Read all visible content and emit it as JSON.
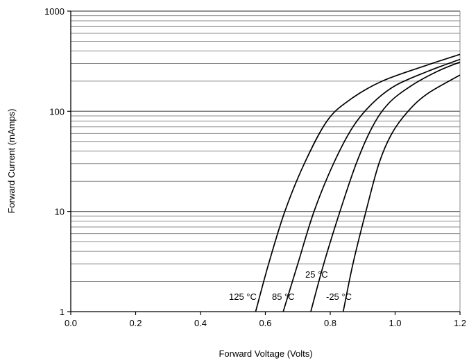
{
  "chart_data": {
    "type": "line",
    "xlabel": "Forward Voltage (Volts)",
    "ylabel": "Forward Current (mAmps)",
    "xlim": [
      0.0,
      1.2
    ],
    "ylim": [
      1,
      1000
    ],
    "y_scale": "log",
    "grid": "horizontal",
    "x_ticks": [
      "0.0",
      "0.2",
      "0.4",
      "0.6",
      "0.8",
      "1.0",
      "1.2"
    ],
    "y_ticks": [
      "1",
      "10",
      "100",
      "1000"
    ],
    "series": [
      {
        "name": "125 °C",
        "x": [
          0.57,
          0.61,
          0.66,
          0.72,
          0.79,
          0.86,
          0.96,
          1.1,
          1.2
        ],
        "y": [
          1,
          3,
          10,
          30,
          80,
          130,
          200,
          290,
          370
        ]
      },
      {
        "name": "85 °C",
        "x": [
          0.655,
          0.7,
          0.75,
          0.81,
          0.87,
          0.93,
          1.0,
          1.1,
          1.2
        ],
        "y": [
          1,
          3,
          10,
          30,
          70,
          120,
          180,
          250,
          330
        ]
      },
      {
        "name": "25 °C",
        "x": [
          0.74,
          0.78,
          0.83,
          0.88,
          0.93,
          0.98,
          1.05,
          1.13,
          1.2
        ],
        "y": [
          1,
          3,
          10,
          30,
          70,
          120,
          180,
          250,
          310
        ]
      },
      {
        "name": "-25 °C",
        "x": [
          0.84,
          0.87,
          0.91,
          0.95,
          0.99,
          1.04,
          1.1,
          1.2
        ],
        "y": [
          1,
          3,
          10,
          30,
          60,
          100,
          150,
          230
        ]
      }
    ]
  }
}
